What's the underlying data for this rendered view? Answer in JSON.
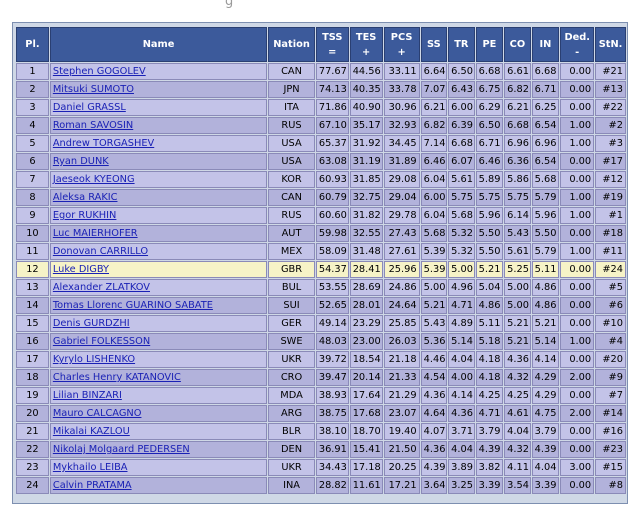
{
  "header_fragment": "g",
  "columns": {
    "pl": "Pl.",
    "name": "Name",
    "nation": "Nation",
    "tss_top": "TSS",
    "tss_bot": "=",
    "tes_top": "TES",
    "tes_bot": "+",
    "pcs_top": "PCS",
    "pcs_bot": "+",
    "ss": "SS",
    "tr": "TR",
    "pe": "PE",
    "co": "CO",
    "in": "IN",
    "ded_top": "Ded.",
    "ded_bot": "-",
    "stn": "StN."
  },
  "highlight_row": 12,
  "rows": [
    [
      "1",
      "Stephen GOGOLEV",
      "CAN",
      "77.67",
      "44.56",
      "33.11",
      "6.64",
      "6.50",
      "6.68",
      "6.61",
      "6.68",
      "0.00",
      "#21"
    ],
    [
      "2",
      "Mitsuki SUMOTO",
      "JPN",
      "74.13",
      "40.35",
      "33.78",
      "7.07",
      "6.43",
      "6.75",
      "6.82",
      "6.71",
      "0.00",
      "#13"
    ],
    [
      "3",
      "Daniel GRASSL",
      "ITA",
      "71.86",
      "40.90",
      "30.96",
      "6.21",
      "6.00",
      "6.29",
      "6.21",
      "6.25",
      "0.00",
      "#22"
    ],
    [
      "4",
      "Roman SAVOSIN",
      "RUS",
      "67.10",
      "35.17",
      "32.93",
      "6.82",
      "6.39",
      "6.50",
      "6.68",
      "6.54",
      "1.00",
      "#2"
    ],
    [
      "5",
      "Andrew TORGASHEV",
      "USA",
      "65.37",
      "31.92",
      "34.45",
      "7.14",
      "6.68",
      "6.71",
      "6.96",
      "6.96",
      "1.00",
      "#3"
    ],
    [
      "6",
      "Ryan DUNK",
      "USA",
      "63.08",
      "31.19",
      "31.89",
      "6.46",
      "6.07",
      "6.46",
      "6.36",
      "6.54",
      "0.00",
      "#17"
    ],
    [
      "7",
      "Jaeseok KYEONG",
      "KOR",
      "60.93",
      "31.85",
      "29.08",
      "6.04",
      "5.61",
      "5.89",
      "5.86",
      "5.68",
      "0.00",
      "#12"
    ],
    [
      "8",
      "Aleksa RAKIC",
      "CAN",
      "60.79",
      "32.75",
      "29.04",
      "6.00",
      "5.75",
      "5.75",
      "5.75",
      "5.79",
      "1.00",
      "#19"
    ],
    [
      "9",
      "Egor RUKHIN",
      "RUS",
      "60.60",
      "31.82",
      "29.78",
      "6.04",
      "5.68",
      "5.96",
      "6.14",
      "5.96",
      "1.00",
      "#1"
    ],
    [
      "10",
      "Luc MAIERHOFER",
      "AUT",
      "59.98",
      "32.55",
      "27.43",
      "5.68",
      "5.32",
      "5.50",
      "5.43",
      "5.50",
      "0.00",
      "#18"
    ],
    [
      "11",
      "Donovan CARRILLO",
      "MEX",
      "58.09",
      "31.48",
      "27.61",
      "5.39",
      "5.32",
      "5.50",
      "5.61",
      "5.79",
      "1.00",
      "#11"
    ],
    [
      "12",
      "Luke DIGBY",
      "GBR",
      "54.37",
      "28.41",
      "25.96",
      "5.39",
      "5.00",
      "5.21",
      "5.25",
      "5.11",
      "0.00",
      "#24"
    ],
    [
      "13",
      "Alexander ZLATKOV",
      "BUL",
      "53.55",
      "28.69",
      "24.86",
      "5.00",
      "4.96",
      "5.04",
      "5.00",
      "4.86",
      "0.00",
      "#5"
    ],
    [
      "14",
      "Tomas Llorenc GUARINO SABATE",
      "SUI",
      "52.65",
      "28.01",
      "24.64",
      "5.21",
      "4.71",
      "4.86",
      "5.00",
      "4.86",
      "0.00",
      "#6"
    ],
    [
      "15",
      "Denis GURDZHI",
      "GER",
      "49.14",
      "23.29",
      "25.85",
      "5.43",
      "4.89",
      "5.11",
      "5.21",
      "5.21",
      "0.00",
      "#10"
    ],
    [
      "16",
      "Gabriel FOLKESSON",
      "SWE",
      "48.03",
      "23.00",
      "26.03",
      "5.36",
      "5.14",
      "5.18",
      "5.21",
      "5.14",
      "1.00",
      "#4"
    ],
    [
      "17",
      "Kyrylo LISHENKO",
      "UKR",
      "39.72",
      "18.54",
      "21.18",
      "4.46",
      "4.04",
      "4.18",
      "4.36",
      "4.14",
      "0.00",
      "#20"
    ],
    [
      "18",
      "Charles Henry KATANOVIC",
      "CRO",
      "39.47",
      "20.14",
      "21.33",
      "4.54",
      "4.00",
      "4.18",
      "4.32",
      "4.29",
      "2.00",
      "#9"
    ],
    [
      "19",
      "Lilian BINZARI",
      "MDA",
      "38.93",
      "17.64",
      "21.29",
      "4.36",
      "4.14",
      "4.25",
      "4.25",
      "4.29",
      "0.00",
      "#7"
    ],
    [
      "20",
      "Mauro CALCAGNO",
      "ARG",
      "38.75",
      "17.68",
      "23.07",
      "4.64",
      "4.36",
      "4.71",
      "4.61",
      "4.75",
      "2.00",
      "#14"
    ],
    [
      "21",
      "Mikalai KAZLOU",
      "BLR",
      "38.10",
      "18.70",
      "19.40",
      "4.07",
      "3.71",
      "3.79",
      "4.04",
      "3.79",
      "0.00",
      "#16"
    ],
    [
      "22",
      "Nikolaj Molgaard PEDERSEN",
      "DEN",
      "36.91",
      "15.41",
      "21.50",
      "4.36",
      "4.04",
      "4.39",
      "4.32",
      "4.39",
      "0.00",
      "#23"
    ],
    [
      "23",
      "Mykhailo LEIBA",
      "UKR",
      "34.43",
      "17.18",
      "20.25",
      "4.39",
      "3.89",
      "3.82",
      "4.11",
      "4.04",
      "3.00",
      "#15"
    ],
    [
      "24",
      "Calvin PRATAMA",
      "INA",
      "28.82",
      "11.61",
      "17.21",
      "3.64",
      "3.25",
      "3.39",
      "3.54",
      "3.39",
      "0.00",
      "#8"
    ]
  ]
}
